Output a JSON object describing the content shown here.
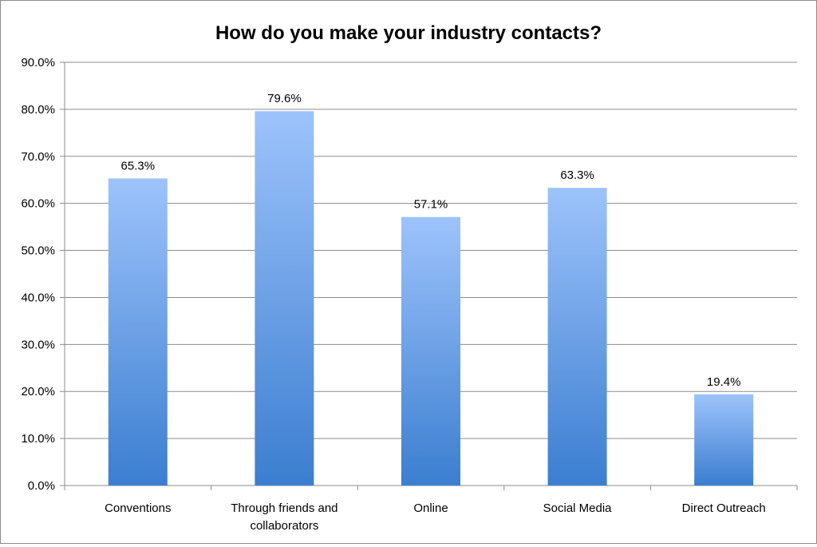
{
  "chart_data": {
    "type": "bar",
    "title": "How do you make your industry contacts?",
    "categories": [
      [
        "Conventions"
      ],
      [
        "Through friends and",
        "collaborators"
      ],
      [
        "Online"
      ],
      [
        "Social Media"
      ],
      [
        "Direct Outreach"
      ]
    ],
    "values": [
      65.3,
      79.6,
      57.1,
      63.3,
      19.4
    ],
    "value_labels": [
      "65.3%",
      "79.6%",
      "57.1%",
      "63.3%",
      "19.4%"
    ],
    "ylim": [
      0,
      90
    ],
    "yticks": [
      0,
      10,
      20,
      30,
      40,
      50,
      60,
      70,
      80,
      90
    ],
    "ytick_labels": [
      "0.0%",
      "10.0%",
      "20.0%",
      "30.0%",
      "40.0%",
      "50.0%",
      "60.0%",
      "70.0%",
      "80.0%",
      "90.0%"
    ],
    "grid": true,
    "legend": false,
    "colors": {
      "bar_top": "#9dc3fb",
      "bar_bottom": "#3b7ed0",
      "grid": "#8c8c8c"
    }
  }
}
